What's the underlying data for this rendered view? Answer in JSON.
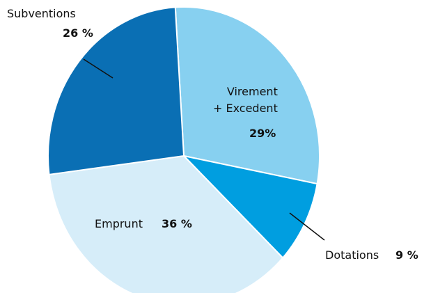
{
  "chart_data": {
    "type": "pie",
    "categories": [
      "Virement\n+ Excedent",
      "Dotations",
      "Emprunt",
      "Subventions"
    ],
    "values": [
      29,
      9,
      36,
      26
    ],
    "value_labels": [
      "29%",
      "9 %",
      "36 %",
      "26 %"
    ],
    "colors": [
      "#87d0f0",
      "#009ee0",
      "#d6edf9",
      "#0a6fb4"
    ]
  }
}
